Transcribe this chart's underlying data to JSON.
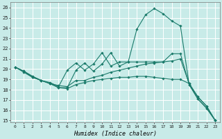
{
  "xlabel": "Humidex (Indice chaleur)",
  "bg_color": "#c8ebe8",
  "grid_color": "#ffffff",
  "line_color": "#1a7a6a",
  "ylim": [
    14.8,
    26.5
  ],
  "xlim": [
    -0.5,
    23.5
  ],
  "yticks": [
    15,
    16,
    17,
    18,
    19,
    20,
    21,
    22,
    23,
    24,
    25,
    26
  ],
  "xticks": [
    0,
    1,
    2,
    3,
    4,
    5,
    6,
    7,
    8,
    9,
    10,
    11,
    12,
    13,
    14,
    15,
    16,
    17,
    18,
    19,
    20,
    21,
    22,
    23
  ],
  "series": [
    {
      "x": [
        0,
        1,
        2,
        3,
        4,
        5,
        6,
        7,
        8,
        9,
        10,
        11,
        12,
        13,
        14,
        15,
        16,
        17,
        18,
        19,
        20,
        21,
        22,
        23
      ],
      "y": [
        20.2,
        19.8,
        19.3,
        18.9,
        18.6,
        18.2,
        18.2,
        19.9,
        20.6,
        19.8,
        20.5,
        21.6,
        20.3,
        20.7,
        23.9,
        25.3,
        25.9,
        25.4,
        24.7,
        24.2,
        18.5,
        17.1,
        16.2,
        15.0
      ]
    },
    {
      "x": [
        0,
        1,
        2,
        3,
        4,
        5,
        6,
        7,
        8,
        9,
        10,
        11,
        12,
        13,
        14,
        15,
        16,
        17,
        18,
        19,
        20,
        21,
        22,
        23
      ],
      "y": [
        20.2,
        19.8,
        19.2,
        18.9,
        18.6,
        18.4,
        18.3,
        18.9,
        18.9,
        19.2,
        19.4,
        19.7,
        19.9,
        20.1,
        20.3,
        20.5,
        20.6,
        20.7,
        20.8,
        21.0,
        18.6,
        17.3,
        16.4,
        15.0
      ]
    },
    {
      "x": [
        0,
        1,
        2,
        3,
        4,
        5,
        6,
        7,
        8,
        9,
        10,
        11,
        12,
        13,
        14,
        15,
        16,
        17,
        18,
        19,
        20,
        21,
        22,
        23
      ],
      "y": [
        20.2,
        19.7,
        19.2,
        18.9,
        18.6,
        18.2,
        18.1,
        18.5,
        18.7,
        18.9,
        19.0,
        19.1,
        19.2,
        19.2,
        19.3,
        19.3,
        19.2,
        19.1,
        19.0,
        19.0,
        18.6,
        17.3,
        16.4,
        15.0
      ]
    },
    {
      "x": [
        0,
        1,
        2,
        3,
        4,
        5,
        6,
        7,
        8,
        9,
        10,
        11,
        12,
        13,
        14,
        15,
        16,
        17,
        18,
        19,
        20,
        21,
        22,
        23
      ],
      "y": [
        20.2,
        19.8,
        19.3,
        18.9,
        18.7,
        18.3,
        19.9,
        20.6,
        19.9,
        20.5,
        21.6,
        20.3,
        20.7,
        20.7,
        20.7,
        20.7,
        20.7,
        20.7,
        21.5,
        21.5,
        18.5,
        17.1,
        16.2,
        15.0
      ]
    }
  ]
}
